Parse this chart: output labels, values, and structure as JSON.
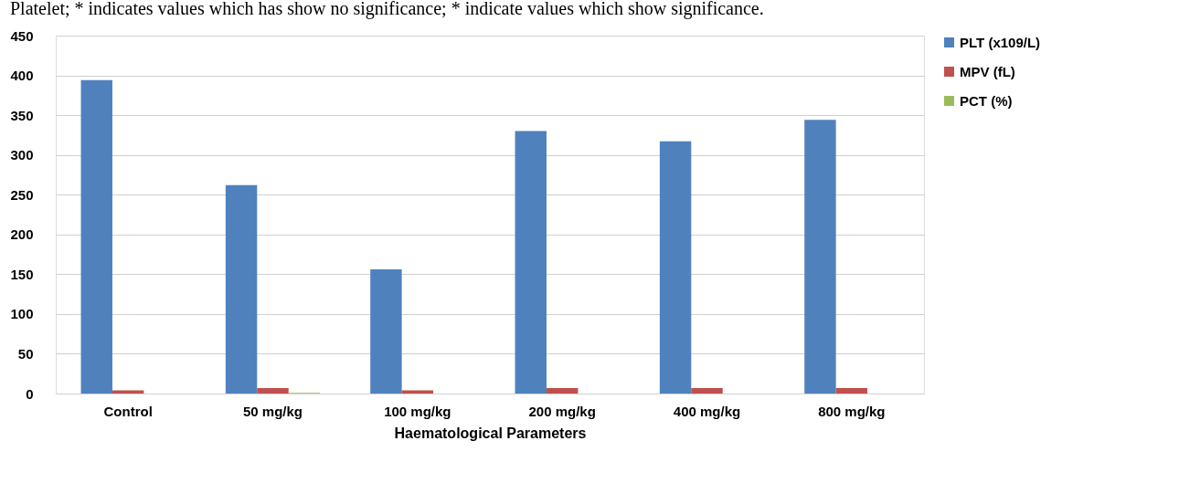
{
  "chart_data": {
    "type": "bar",
    "annotations": [
      "Platelet; * indicates values which has show no significance; * indicate values which show significance."
    ],
    "xlabel": "Haematological Parameters",
    "categories": [
      "Control",
      "50 mg/kg",
      "100 mg/kg",
      "200 mg/kg",
      "400 mg/kg",
      "800 mg/kg"
    ],
    "series": [
      {
        "name": "PLT (x109/L)",
        "color": "#4f81bd",
        "values": [
          394,
          262,
          156,
          330,
          317,
          344
        ]
      },
      {
        "name": "MPV (fL)",
        "color": "#c0504d",
        "values": [
          4,
          7,
          4,
          7,
          7,
          7
        ]
      },
      {
        "name": "PCT (%)",
        "color": "#9bbb59",
        "values": [
          null,
          1,
          null,
          null,
          null,
          null
        ]
      }
    ],
    "ylim": [
      0,
      450
    ],
    "yticks": [
      0,
      50,
      100,
      150,
      200,
      250,
      300,
      350,
      400,
      450
    ],
    "grid": "y",
    "legend": "right"
  }
}
